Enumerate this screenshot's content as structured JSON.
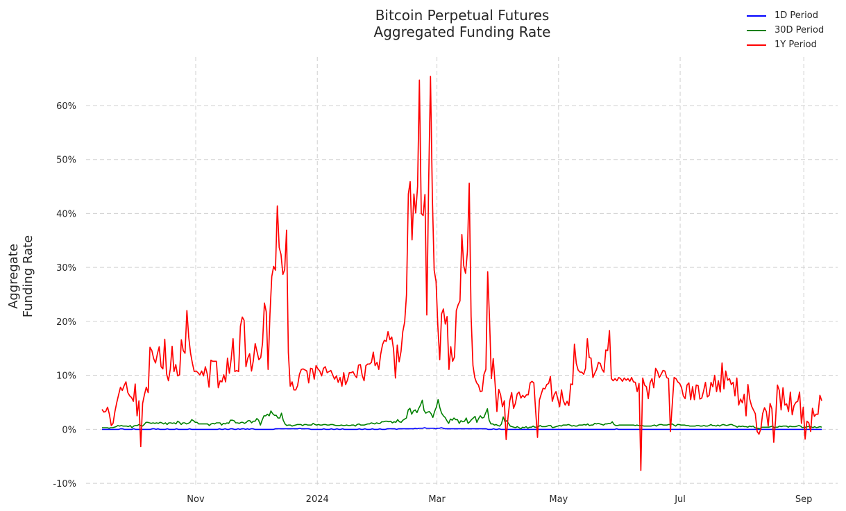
{
  "chart_data": {
    "type": "line",
    "title_lines": [
      "Bitcoin Perpetual Futures",
      "Aggregated Funding Rate"
    ],
    "ylabel_lines": [
      "Aggregate",
      "Funding Rate"
    ],
    "xlabel": "",
    "x_start": "2023-09-15",
    "x_end": "2024-09-10",
    "xlim": [
      "2023-09-07",
      "2024-09-18"
    ],
    "ylim": [
      -10.5,
      69
    ],
    "y_ticks": [
      -10,
      0,
      10,
      20,
      30,
      40,
      50,
      60
    ],
    "y_tick_labels": [
      "-10%",
      "0%",
      "10%",
      "20%",
      "30%",
      "40%",
      "50%",
      "60%"
    ],
    "x_ticks": [
      "2023-11-01",
      "2024-01-01",
      "2024-03-01",
      "2024-05-01",
      "2024-07-01",
      "2024-09-01"
    ],
    "x_tick_labels": [
      "Nov",
      "2024",
      "Mar",
      "May",
      "Jul",
      "Sep"
    ],
    "grid": true,
    "legend_position": "top-right",
    "series": [
      {
        "name": "1D Period",
        "color": "#0000ff",
        "values": [
          0.0,
          0.0,
          0.0,
          0.0,
          0.0,
          0.0,
          0.0,
          0.0,
          0.0,
          0.0,
          0.1,
          0.1,
          0.0,
          0.0,
          0.0,
          0.0,
          0.0,
          0.1,
          0.0,
          0.0,
          0.0,
          0.0,
          0.0,
          0.0,
          0.0,
          0.0,
          0.0,
          0.1,
          0.1,
          0.0,
          0.1,
          0.0,
          0.0,
          0.0,
          0.0,
          0.1,
          0.0,
          0.0,
          0.0,
          0.0,
          0.1,
          0.0,
          0.0,
          0.0,
          0.0,
          0.0,
          0.0,
          0.1,
          0.0,
          0.0,
          0.0,
          0.0,
          0.0,
          0.0,
          0.0,
          0.0,
          0.0,
          0.0,
          0.0,
          0.0,
          0.0,
          0.0,
          0.0,
          0.1,
          0.0,
          0.0,
          0.1,
          0.0,
          0.0,
          0.1,
          0.1,
          0.0,
          0.0,
          0.1,
          0.0,
          0.1,
          0.1,
          0.0,
          0.1,
          0.0,
          0.1,
          0.1,
          0.0,
          0.0,
          0.0,
          0.0,
          0.0,
          0.0,
          0.0,
          0.0,
          0.0,
          0.0,
          0.0,
          0.1,
          0.1,
          0.1,
          0.1,
          0.1,
          0.1,
          0.1,
          0.1,
          0.1,
          0.1,
          0.1,
          0.1,
          0.1,
          0.2,
          0.1,
          0.1,
          0.1,
          0.1,
          0.1,
          0.0,
          0.0,
          0.0,
          0.0,
          0.0,
          0.0,
          0.0,
          0.1,
          0.0,
          0.0,
          0.0,
          0.1,
          0.0,
          0.0,
          0.1,
          0.0,
          0.0,
          0.1,
          0.0,
          0.0,
          0.0,
          0.0,
          0.0,
          0.0,
          0.0,
          0.0,
          0.1,
          0.0,
          0.0,
          0.1,
          0.0,
          0.0,
          0.0,
          0.1,
          0.0,
          0.0,
          0.0,
          0.1,
          0.0,
          0.0,
          0.0,
          0.1,
          0.1,
          0.1,
          0.1,
          0.1,
          0.0,
          0.1,
          0.1,
          0.1,
          0.1,
          0.1,
          0.1,
          0.1,
          0.1,
          0.1,
          0.2,
          0.1,
          0.2,
          0.2,
          0.2,
          0.3,
          0.2,
          0.2,
          0.2,
          0.2,
          0.2,
          0.1,
          0.2,
          0.2,
          0.3,
          0.2,
          0.1,
          0.1,
          0.1,
          0.1,
          0.1,
          0.1,
          0.1,
          0.1,
          0.1,
          0.1,
          0.1,
          0.1,
          0.1,
          0.1,
          0.1,
          0.1,
          0.1,
          0.1,
          0.1,
          0.1,
          0.1,
          0.1,
          0.1,
          0.0,
          0.0,
          0.0,
          0.1,
          0.0,
          0.0,
          0.1,
          0.0,
          0.0,
          0.0,
          0.0,
          0.0,
          0.0,
          0.0,
          0.0,
          0.0,
          0.0,
          0.0,
          0.0,
          0.0,
          0.0,
          0.0,
          0.0,
          0.0,
          0.0,
          0.0,
          0.0,
          0.0,
          0.0,
          0.0,
          0.0,
          0.0,
          0.0,
          0.0,
          0.0,
          0.0,
          0.0,
          0.0,
          0.0,
          0.0,
          0.0,
          0.0,
          0.0,
          0.0,
          0.0,
          0.0,
          0.0,
          0.0,
          0.0,
          0.0,
          0.0,
          0.0,
          0.0,
          0.0,
          0.0,
          0.0,
          0.0,
          0.0,
          0.0,
          0.0,
          0.0,
          0.0,
          0.0,
          0.0,
          0.0,
          0.0,
          0.0,
          0.0,
          0.0,
          0.1,
          0.0,
          0.0,
          0.0,
          0.0,
          0.0,
          0.0,
          0.0,
          0.0,
          0.0,
          0.0,
          0.0,
          0.0,
          0.0,
          0.0,
          0.0,
          0.0,
          0.0,
          0.0,
          0.0,
          0.0,
          0.0,
          0.0,
          0.0,
          0.0,
          0.0,
          0.0,
          0.0,
          0.0,
          0.0,
          0.0,
          0.0,
          0.0,
          0.0,
          0.0,
          0.0,
          0.0,
          0.0,
          0.0,
          0.0,
          0.0,
          0.0,
          0.0,
          0.0,
          0.0,
          0.0,
          0.0,
          0.0,
          0.0,
          0.0,
          0.0,
          0.0,
          0.0,
          0.0,
          0.0,
          0.0,
          0.0,
          0.0,
          0.0,
          0.0,
          0.0,
          0.0,
          0.0,
          0.0,
          0.0,
          0.0,
          0.0,
          0.0,
          0.0,
          0.0,
          0.0,
          0.0,
          0.0,
          0.0,
          0.0,
          0.0,
          0.0,
          0.0,
          0.0,
          0.0,
          0.0,
          0.0,
          0.0,
          0.0,
          0.0,
          0.0,
          0.0,
          0.0,
          0.0,
          0.0,
          0.0,
          0.0,
          0.0,
          0.0,
          0.0,
          0.0,
          0.0,
          0.0,
          0.0,
          0.0,
          0.0,
          0.0,
          0.0,
          0.0,
          0.0,
          0.0,
          0.0,
          0.0,
          0.0,
          0.0,
          0.0
        ]
      },
      {
        "name": "30D Period",
        "color": "#008000",
        "values": [
          0.3,
          0.3,
          0.3,
          0.3,
          0.2,
          0.3,
          0.3,
          0.4,
          0.5,
          0.7,
          0.6,
          0.7,
          0.6,
          0.6,
          0.6,
          0.5,
          0.7,
          0.3,
          0.6,
          0.7,
          0.7,
          0.9,
          0.7,
          0.6,
          0.9,
          1.3,
          1.3,
          1.2,
          1.1,
          1.2,
          1.1,
          1.2,
          1.1,
          1.3,
          1.2,
          1.0,
          1.2,
          0.9,
          1.2,
          1.2,
          1.1,
          1.2,
          1.0,
          1.5,
          1.3,
          0.9,
          1.2,
          1.2,
          1.0,
          1.1,
          1.3,
          1.8,
          1.6,
          1.3,
          1.3,
          1.0,
          1.0,
          1.0,
          1.0,
          1.0,
          1.0,
          0.7,
          1.0,
          1.1,
          1.0,
          1.2,
          1.2,
          1.2,
          0.8,
          1.1,
          1.0,
          1.2,
          1.1,
          1.7,
          1.7,
          1.6,
          1.2,
          1.2,
          1.1,
          1.3,
          1.3,
          1.1,
          1.3,
          1.6,
          1.6,
          1.2,
          1.5,
          1.5,
          2.0,
          1.7,
          0.8,
          1.7,
          2.5,
          2.5,
          2.8,
          2.5,
          3.4,
          2.9,
          2.6,
          2.6,
          2.1,
          2.1,
          3.0,
          1.7,
          1.0,
          0.7,
          0.8,
          0.8,
          0.6,
          0.7,
          0.8,
          0.9,
          0.9,
          0.9,
          0.7,
          0.9,
          0.9,
          0.8,
          0.8,
          0.8,
          1.1,
          0.9,
          0.8,
          0.9,
          0.8,
          0.8,
          0.9,
          0.9,
          0.8,
          0.8,
          0.9,
          0.9,
          0.8,
          0.7,
          0.7,
          0.7,
          0.8,
          0.7,
          0.7,
          0.8,
          0.7,
          0.7,
          0.8,
          0.8,
          0.6,
          0.9,
          1.0,
          0.8,
          0.8,
          0.8,
          0.9,
          1.0,
          1.0,
          1.2,
          1.1,
          1.0,
          1.2,
          1.1,
          1.1,
          1.4,
          1.4,
          1.5,
          1.5,
          1.4,
          1.5,
          1.2,
          1.4,
          1.3,
          1.8,
          1.4,
          1.3,
          1.7,
          1.9,
          2.1,
          3.6,
          3.9,
          2.8,
          3.4,
          3.6,
          3.1,
          3.9,
          4.5,
          5.4,
          3.5,
          3.0,
          3.2,
          3.3,
          2.9,
          2.2,
          3.3,
          4.1,
          5.5,
          4.0,
          3.0,
          2.5,
          2.2,
          1.6,
          1.1,
          1.9,
          1.7,
          2.1,
          1.8,
          1.8,
          1.1,
          1.6,
          1.4,
          1.5,
          2.1,
          1.1,
          1.4,
          1.8,
          2.1,
          2.4,
          1.3,
          2.0,
          2.5,
          2.1,
          2.2,
          3.0,
          3.8,
          1.7,
          1.0,
          1.0,
          0.8,
          0.9,
          0.7,
          0.6,
          1.0,
          2.3,
          1.4,
          1.6,
          1.1,
          0.6,
          0.5,
          0.4,
          0.3,
          0.5,
          0.3,
          0.1,
          0.4,
          0.3,
          0.5,
          0.2,
          0.4,
          0.4,
          0.6,
          0.4,
          0.4,
          0.5,
          0.7,
          0.5,
          0.5,
          0.5,
          0.6,
          0.7,
          0.7,
          0.3,
          0.4,
          0.5,
          0.6,
          0.7,
          0.6,
          0.8,
          0.8,
          0.8,
          0.9,
          0.8,
          0.6,
          0.7,
          0.6,
          0.6,
          0.8,
          0.8,
          0.8,
          0.9,
          0.8,
          1.0,
          0.7,
          0.8,
          0.8,
          1.1,
          1.0,
          1.1,
          1.0,
          0.9,
          0.8,
          1.0,
          1.0,
          1.1,
          1.1,
          1.4,
          0.9,
          0.7,
          0.7,
          0.8,
          0.8,
          0.8,
          0.8,
          0.8,
          0.8,
          0.8,
          0.8,
          0.8,
          0.7,
          0.8,
          0.7,
          0.7,
          0.7,
          0.6,
          0.6,
          0.6,
          0.6,
          0.6,
          0.7,
          0.8,
          0.6,
          0.8,
          0.9,
          0.9,
          0.8,
          0.8,
          0.8,
          0.9,
          0.9,
          1.0,
          0.8,
          0.6,
          0.9,
          0.9,
          0.8,
          0.8,
          0.8,
          0.7,
          0.7,
          0.6,
          0.6,
          0.6,
          0.6,
          0.7,
          0.7,
          0.6,
          0.6,
          0.7,
          0.6,
          0.6,
          0.7,
          0.9,
          0.7,
          0.7,
          0.6,
          0.8,
          0.6,
          0.8,
          0.9,
          0.8,
          0.7,
          0.8,
          0.9,
          0.9,
          0.7,
          0.6,
          0.4,
          0.6,
          0.5,
          0.6,
          0.5,
          0.5,
          0.4,
          0.6,
          0.5,
          0.6,
          0.3,
          0.2,
          0.2,
          0.1,
          0.4,
          0.4,
          0.4,
          0.4,
          0.4,
          0.5,
          0.6,
          0.3,
          0.4,
          0.4,
          0.6,
          0.5,
          0.6,
          0.6,
          0.6,
          0.4,
          0.6,
          0.5,
          0.5,
          0.5,
          0.6,
          0.7,
          0.6,
          0.3,
          0.4,
          0.4,
          0.5,
          0.5,
          0.5,
          0.3,
          0.5,
          0.3,
          0.4,
          0.5,
          0.4
        ]
      },
      {
        "name": "1Y Period",
        "color": "#ff0000",
        "values": [
          3.7,
          3.2,
          3.3,
          4.1,
          2.8,
          0.7,
          1.1,
          3.3,
          5.0,
          6.4,
          7.8,
          7.2,
          8.1,
          8.8,
          6.8,
          6.2,
          5.9,
          5.2,
          8.4,
          2.5,
          5.3,
          -3.2,
          4.8,
          6.4,
          7.8,
          6.8,
          15.2,
          14.6,
          13.1,
          12.3,
          14.0,
          15.3,
          11.6,
          11.2,
          16.7,
          10.3,
          9.0,
          11.2,
          15.4,
          10.7,
          12.0,
          9.9,
          10.1,
          16.6,
          14.6,
          14.1,
          22.0,
          17.0,
          14.1,
          12.2,
          10.7,
          10.8,
          10.5,
          10.1,
          10.8,
          9.9,
          11.6,
          10.3,
          7.8,
          12.8,
          12.6,
          12.6,
          12.6,
          7.7,
          9.0,
          8.8,
          10.1,
          8.8,
          13.2,
          10.4,
          13.0,
          16.8,
          10.7,
          10.9,
          10.7,
          19.1,
          20.8,
          20.2,
          11.6,
          13.2,
          14.0,
          10.8,
          12.7,
          15.9,
          14.4,
          12.9,
          13.3,
          16.0,
          23.4,
          21.8,
          11.1,
          21.4,
          28.3,
          30.2,
          29.5,
          41.4,
          33.7,
          32.4,
          28.7,
          29.6,
          36.9,
          14.2,
          8.0,
          8.8,
          7.3,
          7.3,
          8.1,
          10.2,
          11.1,
          11.2,
          11.0,
          10.8,
          8.6,
          11.3,
          11.2,
          9.3,
          11.8,
          11.2,
          10.8,
          9.9,
          11.3,
          11.6,
          10.5,
          10.7,
          10.9,
          10.1,
          9.3,
          9.9,
          8.7,
          9.6,
          8.0,
          10.5,
          8.3,
          9.1,
          10.5,
          10.5,
          10.7,
          10.0,
          9.6,
          11.9,
          12.0,
          10.0,
          9.0,
          11.8,
          12.1,
          12.1,
          12.4,
          14.3,
          11.8,
          12.4,
          11.1,
          13.9,
          15.7,
          16.5,
          16.3,
          18.1,
          16.6,
          17.1,
          14.8,
          9.5,
          15.6,
          12.5,
          14.4,
          18.1,
          19.9,
          24.9,
          43.6,
          45.9,
          35.1,
          43.6,
          40.1,
          45.0,
          64.7,
          40.0,
          39.6,
          43.5,
          21.2,
          45.2,
          65.4,
          43.0,
          29.5,
          27.4,
          19.1,
          12.9,
          21.4,
          22.3,
          19.5,
          20.9,
          11.1,
          15.3,
          12.6,
          13.4,
          22.0,
          23.1,
          23.8,
          36.1,
          30.3,
          28.9,
          32.9,
          45.6,
          20.9,
          11.8,
          9.6,
          8.6,
          8.2,
          7.0,
          7.1,
          10.2,
          11.1,
          29.2,
          20.3,
          9.4,
          13.1,
          8.4,
          3.3,
          7.4,
          6.4,
          4.2,
          5.3,
          -1.9,
          2.2,
          5.3,
          6.8,
          3.9,
          4.8,
          6.6,
          6.9,
          5.8,
          6.3,
          5.9,
          6.4,
          6.4,
          8.6,
          8.9,
          8.6,
          3.3,
          -1.5,
          5.4,
          6.5,
          7.6,
          7.5,
          8.3,
          8.5,
          9.8,
          5.2,
          6.4,
          7.0,
          5.6,
          4.2,
          7.3,
          5.3,
          4.5,
          5.2,
          4.4,
          8.4,
          8.3,
          15.8,
          12.2,
          11.0,
          10.6,
          10.6,
          10.2,
          11.3,
          16.8,
          13.3,
          13.2,
          9.6,
          10.4,
          11.1,
          12.4,
          12.2,
          11.1,
          10.6,
          14.7,
          14.6,
          18.3,
          9.4,
          9.0,
          9.4,
          9.0,
          9.6,
          9.4,
          8.9,
          9.5,
          9.1,
          9.4,
          8.9,
          9.6,
          8.8,
          8.7,
          7.0,
          8.5,
          -7.6,
          9.5,
          8.2,
          7.9,
          5.7,
          8.6,
          9.4,
          7.7,
          11.3,
          10.7,
          9.6,
          10.2,
          10.9,
          10.8,
          9.6,
          9.4,
          -0.4,
          4.5,
          9.6,
          9.4,
          8.8,
          8.5,
          7.8,
          6.2,
          5.7,
          8.2,
          8.6,
          5.5,
          7.9,
          5.5,
          8.2,
          8.1,
          5.6,
          5.8,
          7.1,
          8.7,
          6.0,
          6.3,
          8.7,
          7.9,
          10.0,
          7.0,
          9.0,
          6.9,
          12.3,
          7.5,
          10.8,
          9.1,
          9.4,
          8.3,
          8.7,
          6.2,
          9.5,
          4.5,
          5.6,
          4.9,
          6.5,
          2.5,
          8.3,
          5.6,
          4.3,
          3.6,
          2.9,
          -0.4,
          -0.9,
          0.1,
          2.9,
          4.0,
          3.3,
          0.6,
          4.8,
          3.8,
          -2.4,
          1.7,
          8.2,
          7.2,
          3.6,
          7.7,
          4.5,
          4.7,
          3.3,
          6.9,
          2.7,
          4.4,
          5.0,
          5.2,
          6.9,
          1.1,
          4.1,
          -1.8,
          1.5,
          1.2,
          -0.4,
          3.9,
          2.4,
          2.8,
          2.8,
          6.3,
          5.3
        ]
      }
    ]
  }
}
